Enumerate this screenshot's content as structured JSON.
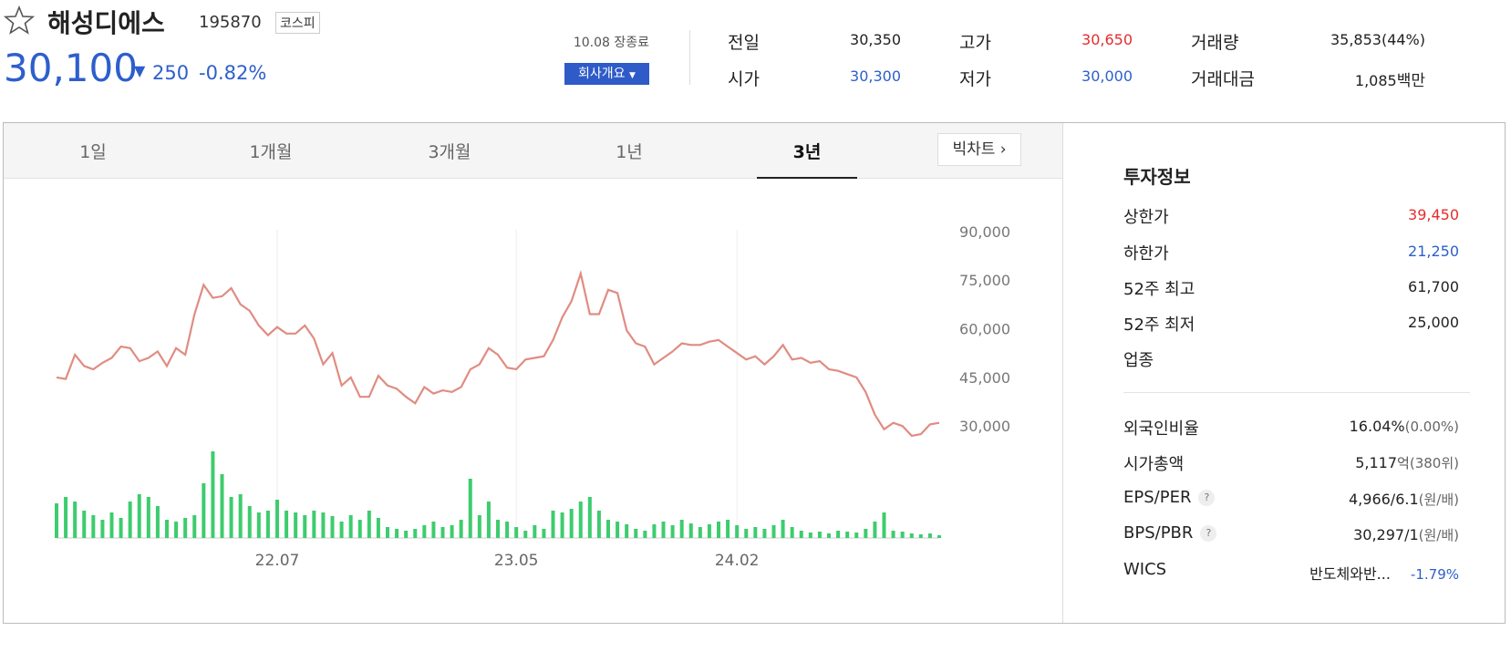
{
  "header": {
    "name": "해성디에스",
    "code": "195870",
    "market": "코스피",
    "price": "30,100",
    "change": "250",
    "change_rate": "-0.82%",
    "time": "10.08 장종료",
    "company_button": "회사개요"
  },
  "quotes": [
    {
      "label": "전일",
      "value": "30,350"
    },
    {
      "label": "고가",
      "value": "30,650"
    },
    {
      "label": "거래량",
      "value": "35,853(44%)"
    },
    {
      "label": "시가",
      "value": "30,300"
    },
    {
      "label": "저가",
      "value": "30,000"
    },
    {
      "label": "거래대금",
      "value": "1,085",
      "unit": "백만"
    }
  ],
  "tabs": [
    "1일",
    "1개월",
    "3개월",
    "1년",
    "3년"
  ],
  "big_chart": "빅차트",
  "chart_data": {
    "type": "line",
    "categories": [
      null,
      null,
      null,
      null,
      null,
      null,
      null,
      null,
      null,
      null,
      null,
      null,
      null,
      null,
      null,
      null,
      null,
      null,
      null,
      null,
      null,
      null,
      null,
      null,
      "22.07",
      null,
      null,
      null,
      null,
      null,
      null,
      null,
      null,
      null,
      null,
      null,
      null,
      null,
      null,
      null,
      null,
      null,
      null,
      null,
      null,
      null,
      null,
      null,
      null,
      null,
      "23.05",
      null,
      null,
      null,
      null,
      null,
      null,
      null,
      null,
      null,
      null,
      null,
      null,
      null,
      null,
      null,
      null,
      null,
      null,
      null,
      null,
      null,
      null,
      null,
      "24.02",
      null,
      null,
      null,
      null,
      null,
      null,
      null,
      null,
      null,
      null,
      null,
      null,
      null,
      null,
      null,
      null,
      null,
      null,
      null,
      null,
      null,
      null
    ],
    "series": [
      {
        "color": "#e08c82",
        "values": [
          45000,
          44500,
          52000,
          48500,
          47500,
          49500,
          51000,
          54500,
          54000,
          50000,
          51000,
          53000,
          48500,
          54000,
          52000,
          64500,
          73500,
          69500,
          70000,
          72500,
          67500,
          65500,
          61000,
          58000,
          60500,
          58500,
          58500,
          61000,
          57000,
          49000,
          52500,
          42500,
          45000,
          39000,
          39000,
          45500,
          42500,
          41500,
          39000,
          37000,
          42000,
          40000,
          41000,
          40500,
          42000,
          47500,
          49000,
          54000,
          52000,
          48000,
          47500,
          50500,
          51000,
          51500,
          56500,
          63500,
          68500,
          77000,
          64500,
          64500,
          72000,
          71000,
          59500,
          55500,
          54500,
          49000,
          51000,
          53000,
          55500,
          55000,
          55000,
          56000,
          56500,
          54500,
          52500,
          50500,
          51500,
          49000,
          51500,
          55000,
          50500,
          51000,
          49500,
          50000,
          47500,
          47000,
          46000,
          45000,
          40500,
          33500,
          29000,
          31000,
          30000,
          27000,
          27500,
          30500,
          31000
        ]
      },
      {
        "type": "bar",
        "axis": "y2",
        "color": "#3dcc6e",
        "values": [
          38,
          45,
          40,
          30,
          25,
          20,
          28,
          22,
          40,
          48,
          45,
          35,
          20,
          18,
          22,
          25,
          60,
          95,
          70,
          45,
          48,
          35,
          28,
          30,
          42,
          30,
          28,
          25,
          30,
          28,
          24,
          18,
          25,
          20,
          30,
          22,
          12,
          10,
          8,
          10,
          14,
          18,
          12,
          14,
          20,
          65,
          25,
          40,
          20,
          18,
          12,
          8,
          14,
          10,
          30,
          28,
          32,
          40,
          45,
          30,
          20,
          18,
          15,
          10,
          8,
          15,
          18,
          14,
          20,
          16,
          12,
          15,
          18,
          20,
          14,
          10,
          12,
          10,
          14,
          20,
          12,
          8,
          6,
          7,
          5,
          8,
          7,
          6,
          10,
          18,
          28,
          8,
          7,
          5,
          4,
          5,
          3
        ]
      }
    ],
    "ylim": [
      25000,
      95000
    ],
    "yticks": [
      {
        "value": 30000,
        "label": "30,000"
      },
      {
        "value": 45000,
        "label": "45,000"
      },
      {
        "value": 60000,
        "label": "60,000"
      },
      {
        "value": 75000,
        "label": "75,000"
      },
      {
        "value": 90000,
        "label": "90,000"
      }
    ],
    "y2lim": [
      0,
      100
    ],
    "grid": "x"
  },
  "invest": {
    "title": "투자정보",
    "rows": [
      {
        "label": "상한가",
        "value": "39,450",
        "color": "#e52c2c"
      },
      {
        "label": "하한가",
        "value": "21,250",
        "color": "#2d5fcc"
      },
      {
        "label": "52주 최고",
        "value": "61,700"
      },
      {
        "label": "52주 최저",
        "value": "25,000"
      },
      {
        "label": "업종"
      }
    ],
    "rows2": [
      {
        "label": "외국인비율",
        "value": "16.04%",
        "note": "(0.00%)"
      },
      {
        "label": "시가총액",
        "value": "5,117",
        "unit": "억",
        "note": "(380위)"
      },
      {
        "label": "EPS/PER",
        "help": "?",
        "value": "4,966/6.1",
        "note": "(원/배)"
      },
      {
        "label": "BPS/PBR",
        "help": "?",
        "value": "30,297/1",
        "note": "(원/배)"
      },
      {
        "label": "WICS",
        "value": "반도체와반...",
        "note": "-1.79%",
        "note_color": "#2d5fcc"
      }
    ]
  }
}
